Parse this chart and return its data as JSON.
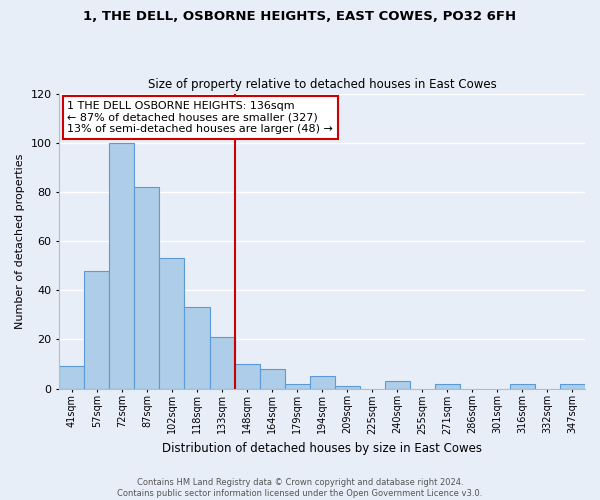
{
  "title": "1, THE DELL, OSBORNE HEIGHTS, EAST COWES, PO32 6FH",
  "subtitle": "Size of property relative to detached houses in East Cowes",
  "xlabel": "Distribution of detached houses by size in East Cowes",
  "ylabel": "Number of detached properties",
  "bar_labels": [
    "41sqm",
    "57sqm",
    "72sqm",
    "87sqm",
    "102sqm",
    "118sqm",
    "133sqm",
    "148sqm",
    "164sqm",
    "179sqm",
    "194sqm",
    "209sqm",
    "225sqm",
    "240sqm",
    "255sqm",
    "271sqm",
    "286sqm",
    "301sqm",
    "316sqm",
    "332sqm",
    "347sqm"
  ],
  "bar_values": [
    9,
    48,
    100,
    82,
    53,
    33,
    21,
    10,
    8,
    2,
    5,
    1,
    0,
    3,
    0,
    2,
    0,
    0,
    2,
    0,
    2
  ],
  "bar_color": "#aecde8",
  "bar_edge_color": "#5b9bd5",
  "property_line_x": 6.5,
  "property_line_color": "#cc0000",
  "annotation_box_text": "1 THE DELL OSBORNE HEIGHTS: 136sqm\n← 87% of detached houses are smaller (327)\n13% of semi-detached houses are larger (48) →",
  "annotation_box_edge_color": "#cc0000",
  "annotation_box_facecolor": "#ffffff",
  "ylim": [
    0,
    120
  ],
  "yticks": [
    0,
    20,
    40,
    60,
    80,
    100,
    120
  ],
  "footer_text": "Contains HM Land Registry data © Crown copyright and database right 2024.\nContains public sector information licensed under the Open Government Licence v3.0.",
  "bg_color": "#e8eef8",
  "plot_bg_color": "#e8eef8",
  "grid_color": "#ffffff",
  "title_fontsize": 9.5,
  "subtitle_fontsize": 8.5,
  "ylabel_fontsize": 8,
  "xlabel_fontsize": 8.5,
  "tick_fontsize": 7,
  "footer_fontsize": 6,
  "ann_fontsize": 8
}
